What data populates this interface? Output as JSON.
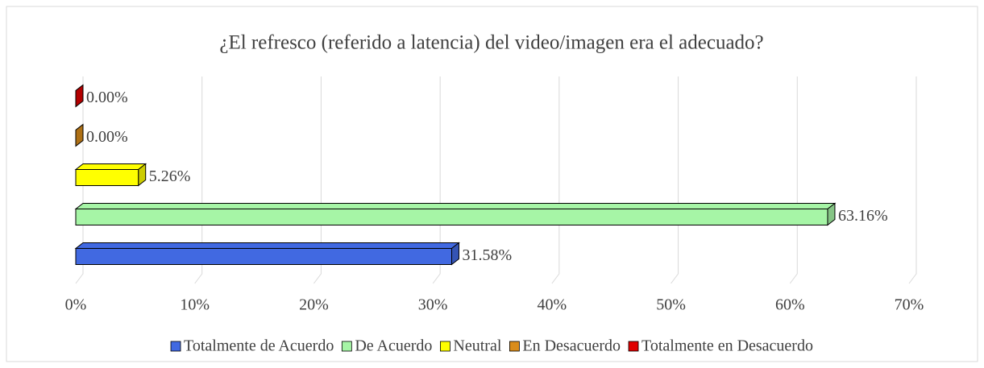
{
  "chart_data": {
    "type": "bar",
    "orientation": "horizontal",
    "title": "¿El refresco (referido a latencia) del video/imagen era el adecuado?",
    "series": [
      {
        "name": "Totalmente de Acuerdo",
        "color": "#4169e1",
        "values": [
          31.58
        ],
        "value_labels": [
          "31.58%"
        ]
      },
      {
        "name": "De Acuerdo",
        "color": "#a6f5a6",
        "values": [
          63.16
        ],
        "value_labels": [
          "63.16%"
        ]
      },
      {
        "name": "Neutral",
        "color": "#ffff00",
        "values": [
          5.26
        ],
        "value_labels": [
          "5.26%"
        ]
      },
      {
        "name": "En Desacuerdo",
        "color": "#d98c1a",
        "values": [
          0
        ],
        "value_labels": [
          "0.00%"
        ]
      },
      {
        "name": "Totalmente en Desacuerdo",
        "color": "#e00000",
        "values": [
          0
        ],
        "value_labels": [
          "0.00%"
        ]
      }
    ],
    "xlim": [
      0,
      70
    ],
    "xticks": [
      {
        "value": 0,
        "label": "0%"
      },
      {
        "value": 10,
        "label": "10%"
      },
      {
        "value": 20,
        "label": "20%"
      },
      {
        "value": 30,
        "label": "30%"
      },
      {
        "value": 40,
        "label": "40%"
      },
      {
        "value": 50,
        "label": "50%"
      },
      {
        "value": 60,
        "label": "60%"
      },
      {
        "value": 70,
        "label": "70%"
      }
    ],
    "grid": true,
    "legend": "bottom"
  }
}
